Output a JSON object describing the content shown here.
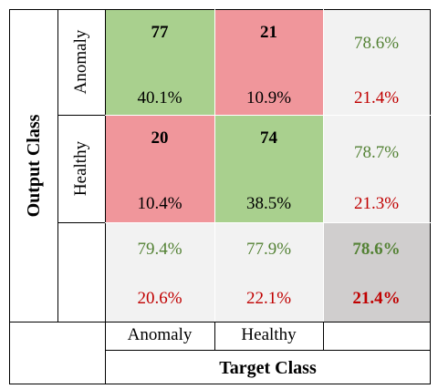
{
  "chart_data": {
    "type": "heatmap",
    "ylabel": "Output Class",
    "xlabel": "Target Class",
    "row_labels": [
      "Anomaly",
      "Healthy"
    ],
    "col_labels": [
      "Anomaly",
      "Healthy"
    ],
    "counts": [
      [
        77,
        21
      ],
      [
        20,
        74
      ]
    ],
    "percents": [
      [
        "40.1%",
        "10.9%"
      ],
      [
        "10.4%",
        "38.5%"
      ]
    ],
    "row_summary": [
      {
        "correct": "78.6%",
        "incorrect": "21.4%"
      },
      {
        "correct": "78.7%",
        "incorrect": "21.3%"
      }
    ],
    "col_summary": [
      {
        "correct": "79.4%",
        "incorrect": "20.6%"
      },
      {
        "correct": "77.9%",
        "incorrect": "22.1%"
      }
    ],
    "overall": {
      "correct": "78.6%",
      "incorrect": "21.4%"
    }
  },
  "colors": {
    "correct_cell": "#a9d08e",
    "incorrect_cell": "#f0969b",
    "summary_cell": "#f2f2f2",
    "overall_cell": "#d0cece",
    "correct_text": "#548235",
    "incorrect_text": "#c00000"
  }
}
